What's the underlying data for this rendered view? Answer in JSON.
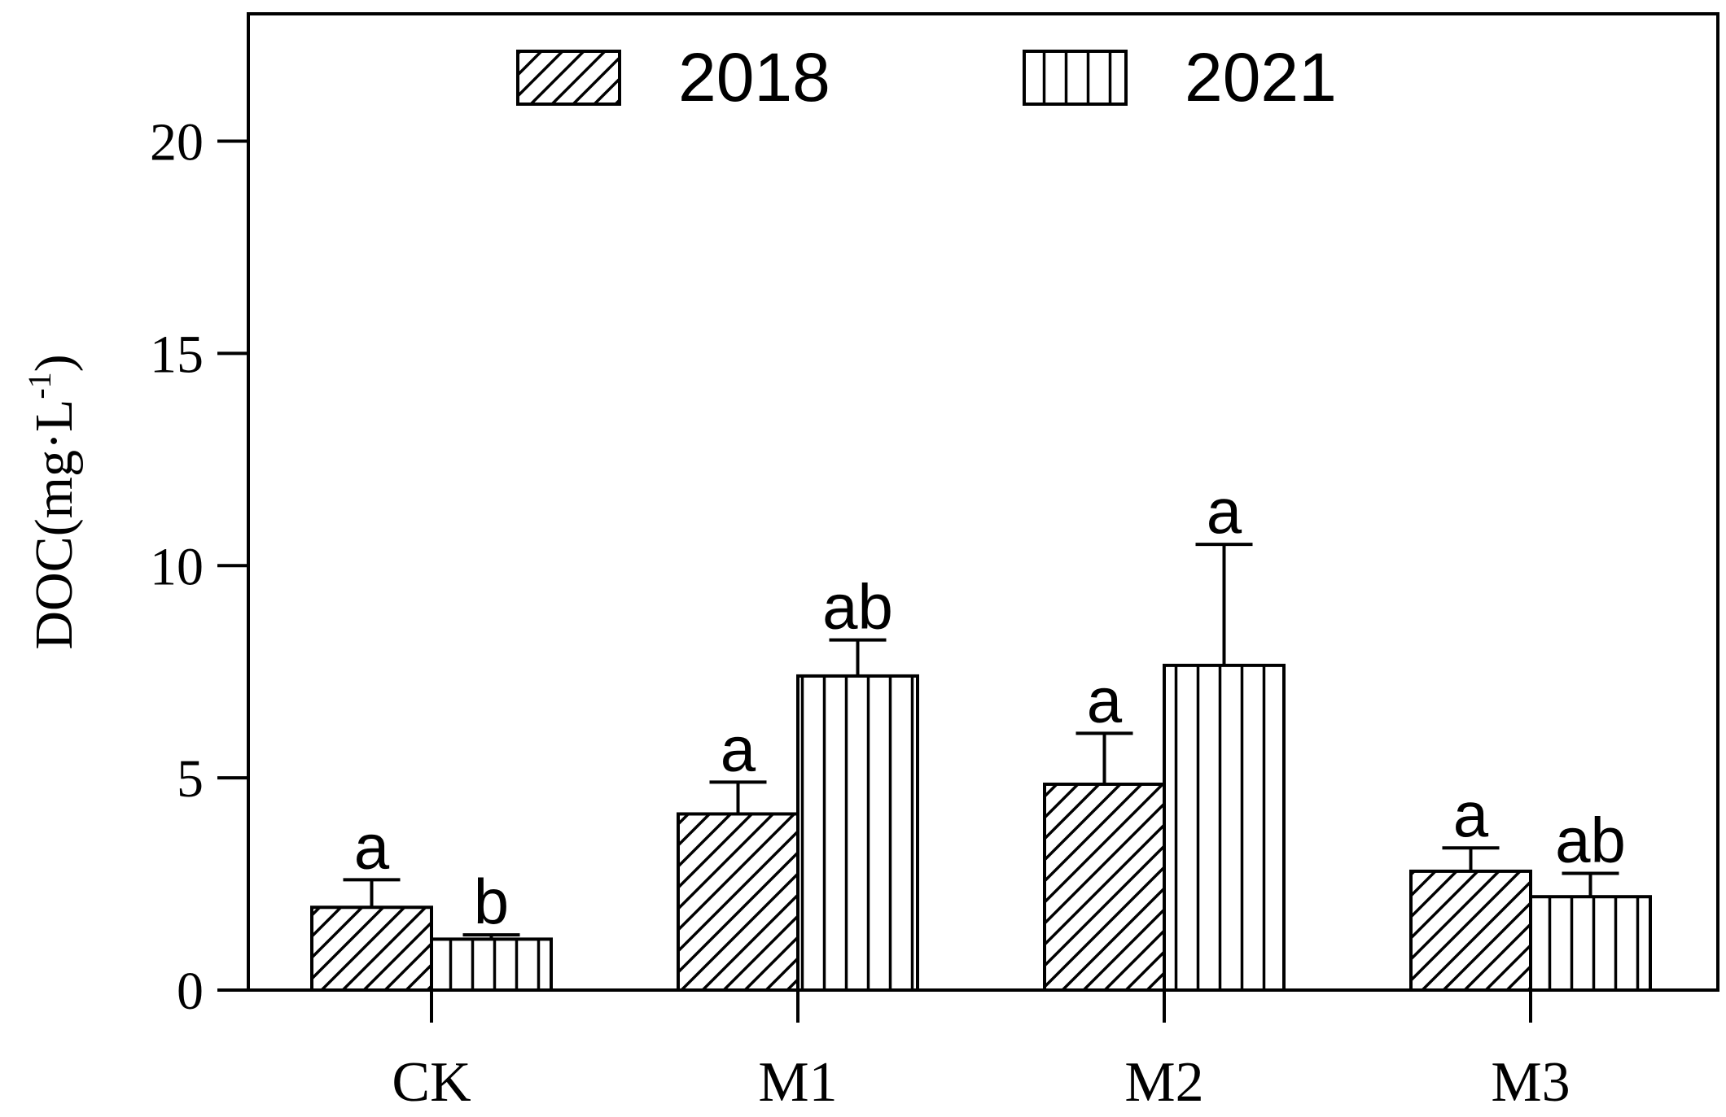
{
  "chart_data": {
    "type": "bar",
    "ylabel_main": "DOC(mg·L",
    "ylabel_sup": "-1",
    "ylabel_end": ")",
    "ylim": [
      0,
      23
    ],
    "yticks": [
      0,
      5,
      10,
      15,
      20
    ],
    "ytick_labels": [
      "0",
      "5",
      "10",
      "15",
      "20"
    ],
    "categories": [
      "CK",
      "M1",
      "M2",
      "M3"
    ],
    "legend_position": "top",
    "grid": false,
    "series": [
      {
        "name": "2018",
        "pattern": "diagonal",
        "values": [
          1.95,
          4.15,
          4.85,
          2.8
        ],
        "errors": [
          0.65,
          0.75,
          1.2,
          0.55
        ],
        "labels": [
          "a",
          "a",
          "a",
          "a"
        ]
      },
      {
        "name": "2021",
        "pattern": "vertical",
        "values": [
          1.2,
          7.4,
          7.65,
          2.2
        ],
        "errors": [
          0.1,
          0.85,
          2.85,
          0.55
        ],
        "labels": [
          "b",
          "ab",
          "a",
          "ab"
        ]
      }
    ],
    "colors": {
      "axis": "#000000",
      "fill": "#ffffff",
      "hatch": "#000000"
    }
  }
}
